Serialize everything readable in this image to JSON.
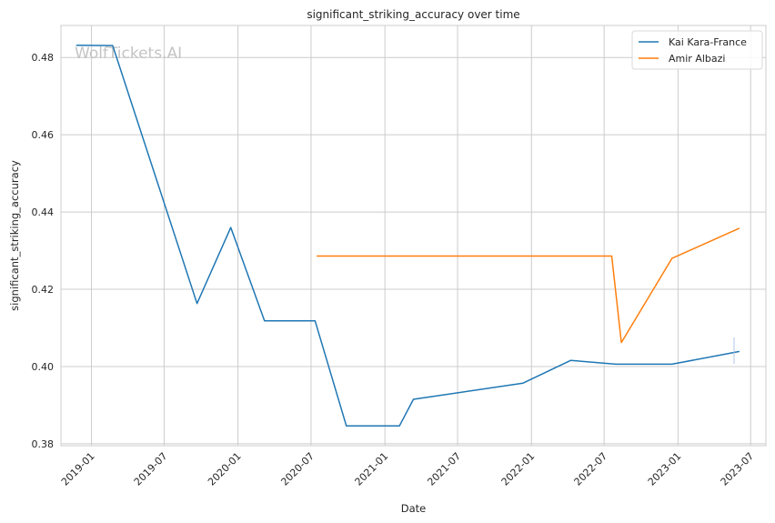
{
  "chart_data": {
    "type": "line",
    "title": "significant_striking_accuracy over time",
    "xlabel": "Date",
    "ylabel": "significant_striking_accuracy",
    "watermark": "WolfTickets.AI",
    "x_tick_labels": [
      "2019-01",
      "2019-07",
      "2020-01",
      "2020-07",
      "2021-01",
      "2021-07",
      "2022-01",
      "2022-07",
      "2023-01",
      "2023-07"
    ],
    "y_tick_labels": [
      "0.38",
      "0.40",
      "0.42",
      "0.44",
      "0.46",
      "0.48"
    ],
    "xlim": [
      "2018-10-17",
      "2023-08-08"
    ],
    "ylim": [
      0.3795,
      0.4883
    ],
    "grid": true,
    "legend_position": "top-right",
    "colors": {
      "Kai Kara-France": "#1f77b4",
      "Amir Albazi": "#ff7f0e"
    },
    "series": [
      {
        "name": "Kai Kara-France",
        "x": [
          "2018-11-24",
          "2019-02-23",
          "2019-09-21",
          "2019-12-14",
          "2020-03-07",
          "2020-07-11",
          "2020-09-27",
          "2021-02-06",
          "2021-03-13",
          "2021-12-11",
          "2022-04-09",
          "2022-07-30",
          "2022-12-17",
          "2023-06-03"
        ],
        "y": [
          0.4832,
          0.4831,
          0.4163,
          0.436,
          0.4118,
          0.4118,
          0.3846,
          0.3846,
          0.3915,
          0.3957,
          0.4016,
          0.4006,
          0.4006,
          0.4039
        ]
      },
      {
        "name": "Amir Albazi",
        "x": [
          "2020-07-15",
          "2022-07-20",
          "2022-08-13",
          "2022-12-17",
          "2023-06-03"
        ],
        "y": [
          0.4286,
          0.4286,
          0.4062,
          0.428,
          0.4358
        ]
      }
    ]
  }
}
